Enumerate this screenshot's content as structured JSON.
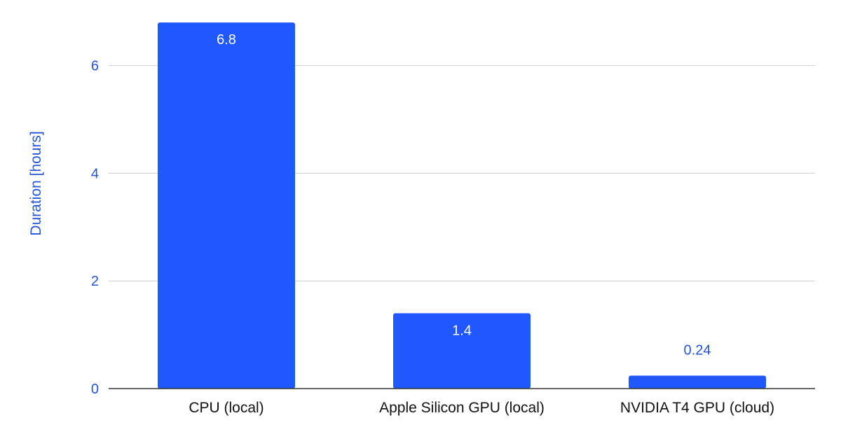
{
  "chart_data": {
    "type": "bar",
    "categories": [
      "CPU (local)",
      "Apple Silicon GPU (local)",
      "NVIDIA T4 GPU (cloud)"
    ],
    "values": [
      6.8,
      1.4,
      0.24
    ],
    "data_labels": [
      "6.8",
      "1.4",
      "0.24"
    ],
    "title": "",
    "xlabel": "",
    "ylabel": "Duration [hours]",
    "ylim": [
      0,
      6.8
    ],
    "yticks": [
      0,
      2,
      4,
      6
    ],
    "grid": true,
    "legend": "none",
    "colors": {
      "bar": "#2157ff",
      "axis_text": "#2453d6",
      "category_text": "#111111",
      "gridline": "#cccccc",
      "baseline": "#333333",
      "label_inside": "#ffffff",
      "label_outside": "#2453d6"
    }
  }
}
